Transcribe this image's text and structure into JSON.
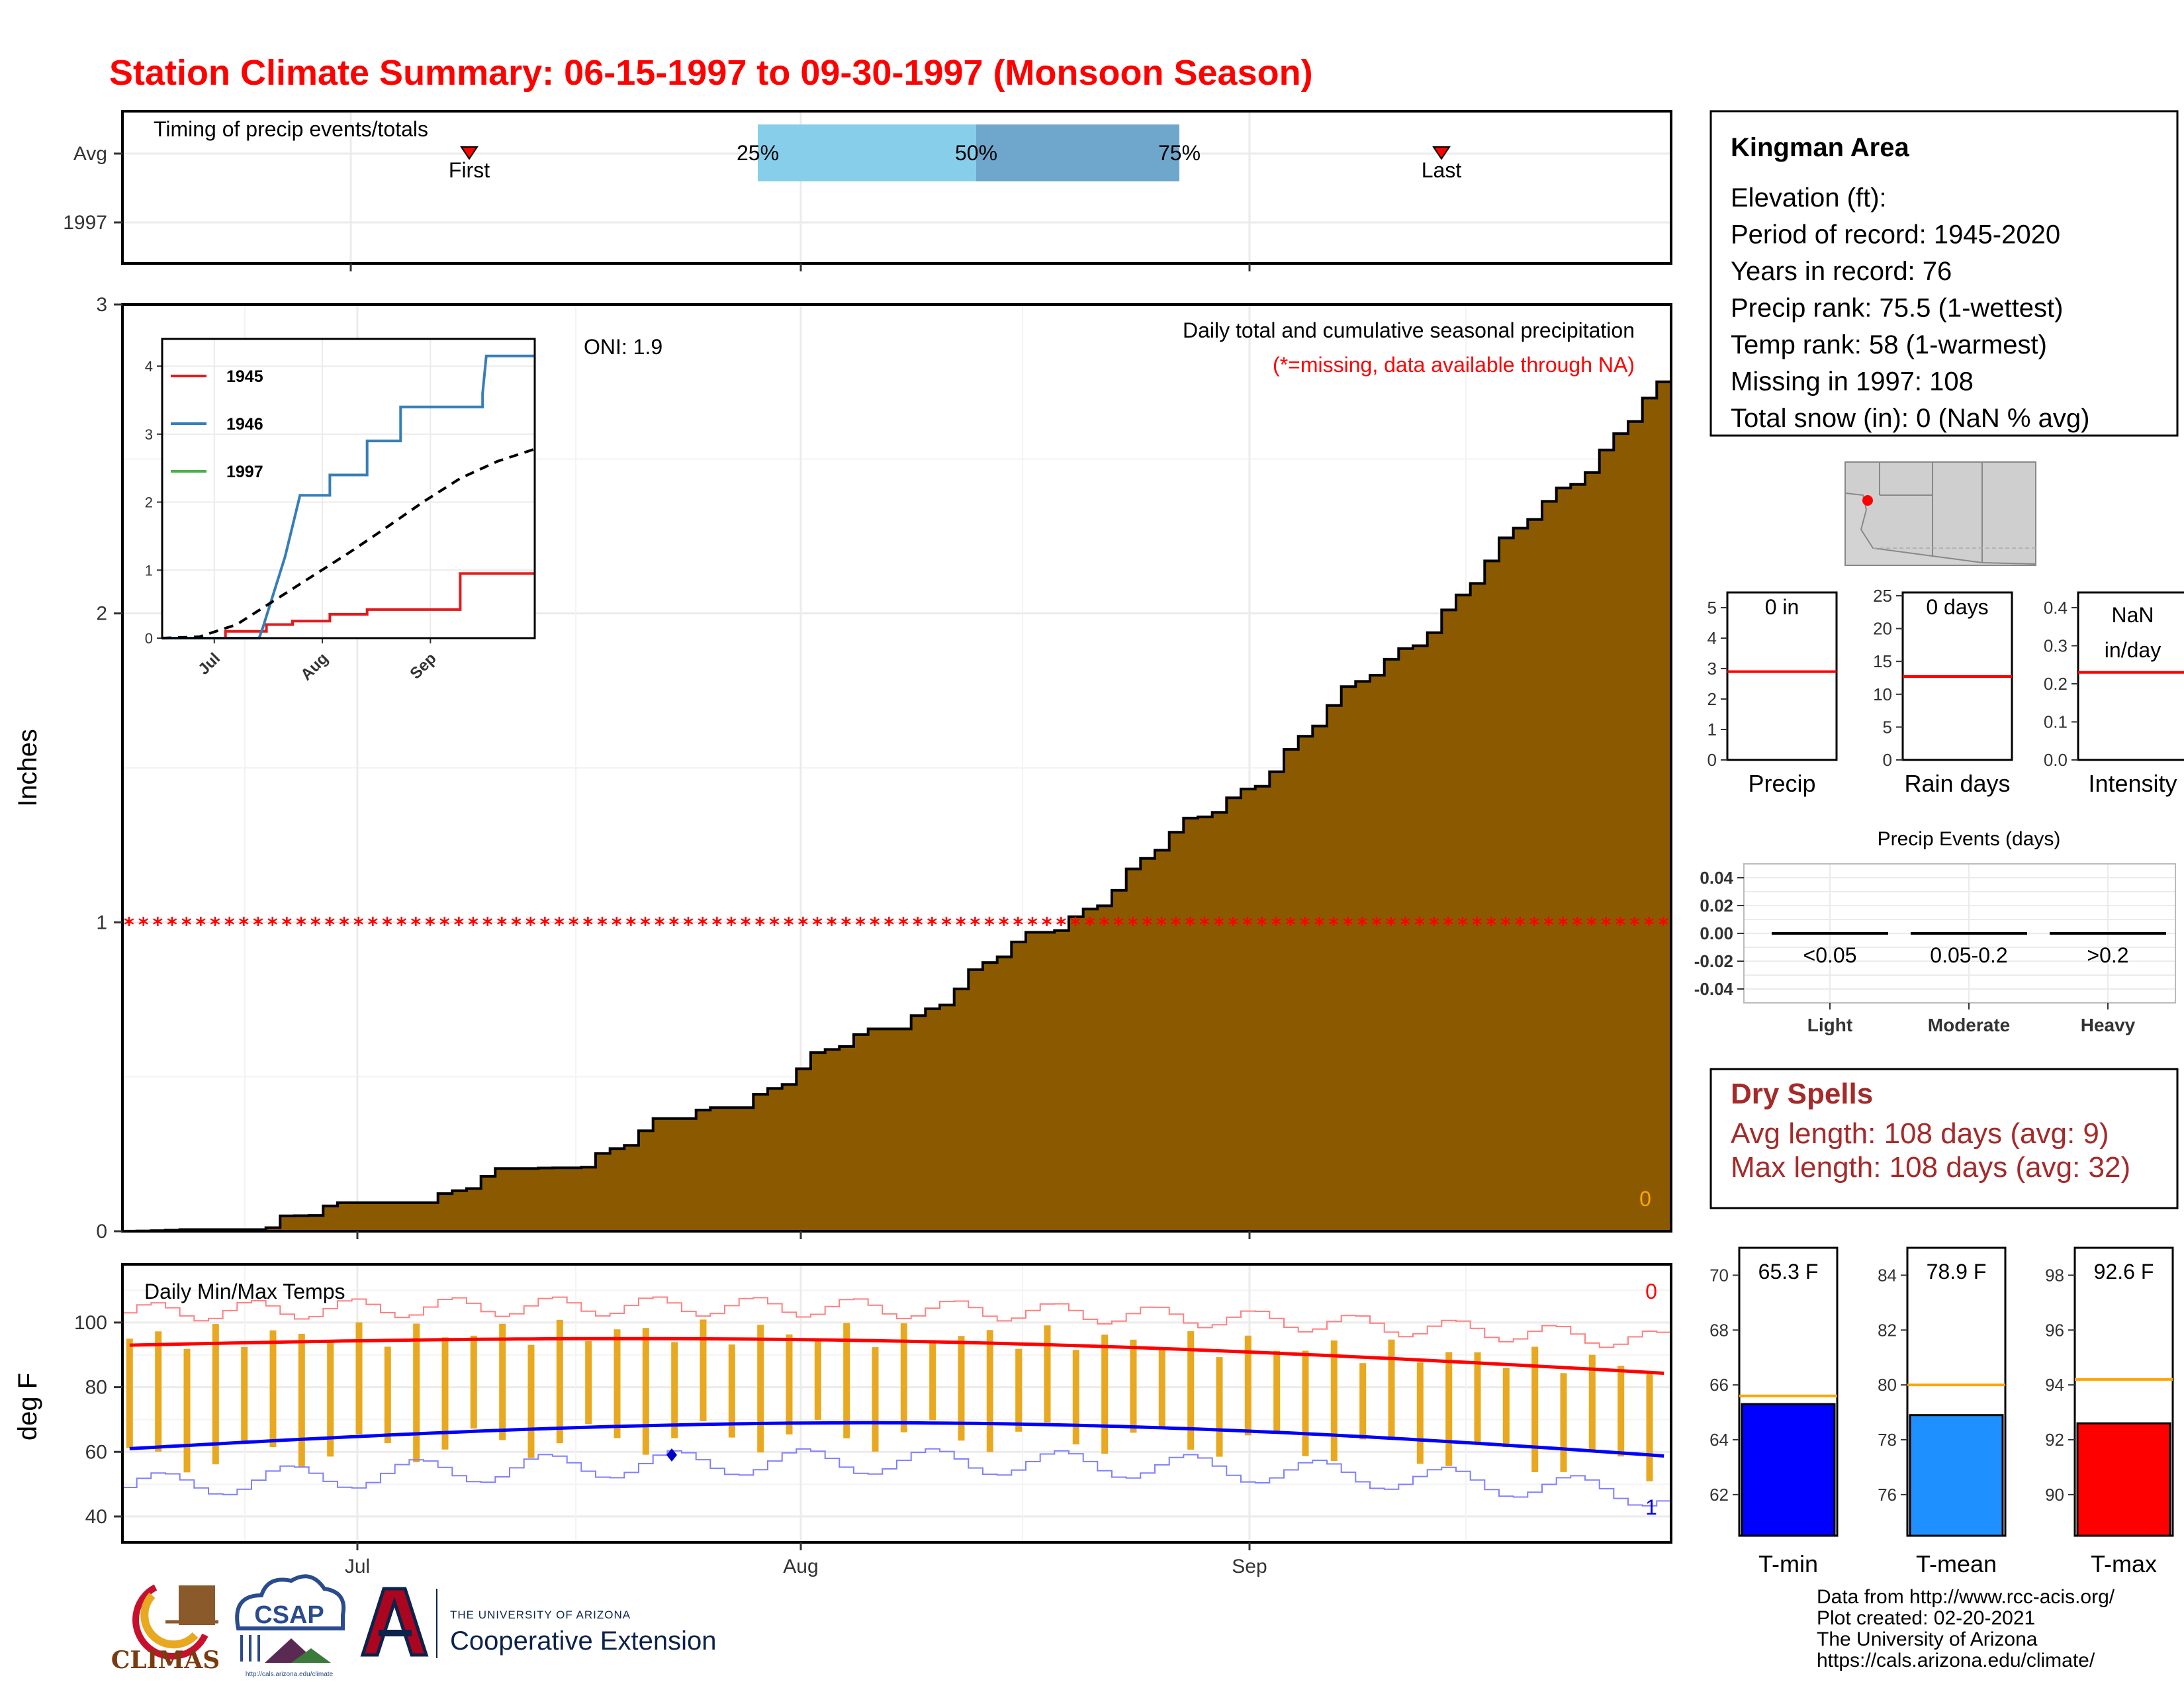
{
  "chart_data": {
    "title": "Station Climate Summary: 06-15-1997 to 09-30-1997 (Monsoon Season)",
    "timing_panel": {
      "type": "range",
      "label": "Timing of precip events/totals",
      "rows": [
        "Avg",
        "1997"
      ],
      "markers": [
        "First",
        "Last"
      ],
      "quantiles": [
        "25%",
        "50%",
        "75%"
      ]
    },
    "main_panel": {
      "type": "area",
      "ylabel": "Inches",
      "ylim": [
        0,
        3
      ],
      "yticks": [
        "0",
        "1",
        "2",
        "3"
      ],
      "xticks": [
        "Jul",
        "Aug",
        "Sep"
      ],
      "oni": "ONI: 1.9",
      "label_1": "Daily total and cumulative seasonal precipitation",
      "label_2": "(*=missing, data available through NA)",
      "corner_value": "0",
      "cumulative_total": 2.75,
      "missing_marker_level": 1.0,
      "colors": {
        "fill": "#8b5a00",
        "missing": "#ff0000",
        "corner": "#ffa500"
      }
    },
    "inset": {
      "type": "line",
      "yticks": [
        "0",
        "1",
        "2",
        "3",
        "4"
      ],
      "xticks": [
        "Jul",
        "Aug",
        "Sep"
      ],
      "series": [
        {
          "name": "1945",
          "color": "#e41a1c",
          "points": [
            [
              0,
              0
            ],
            [
              0.17,
              0
            ],
            [
              0.17,
              0.1
            ],
            [
              0.28,
              0.1
            ],
            [
              0.28,
              0.2
            ],
            [
              0.35,
              0.2
            ],
            [
              0.35,
              0.25
            ],
            [
              0.45,
              0.25
            ],
            [
              0.45,
              0.35
            ],
            [
              0.55,
              0.35
            ],
            [
              0.55,
              0.42
            ],
            [
              0.8,
              0.42
            ],
            [
              0.8,
              0.95
            ],
            [
              1,
              0.95
            ]
          ]
        },
        {
          "name": "1946",
          "color": "#377eb8",
          "points": [
            [
              0,
              0
            ],
            [
              0.26,
              0
            ],
            [
              0.27,
              0.15
            ],
            [
              0.33,
              1.2
            ],
            [
              0.37,
              2.1
            ],
            [
              0.45,
              2.1
            ],
            [
              0.45,
              2.4
            ],
            [
              0.55,
              2.4
            ],
            [
              0.55,
              2.9
            ],
            [
              0.64,
              2.9
            ],
            [
              0.64,
              3.4
            ],
            [
              0.86,
              3.4
            ],
            [
              0.86,
              3.6
            ],
            [
              0.87,
              4.15
            ],
            [
              1,
              4.15
            ]
          ]
        },
        {
          "name": "1997",
          "color": "#4daf4a",
          "points": []
        },
        {
          "name": "",
          "color": "#000000",
          "dashed": true,
          "points": [
            [
              0,
              0
            ],
            [
              0.1,
              0.02
            ],
            [
              0.2,
              0.2
            ],
            [
              0.3,
              0.55
            ],
            [
              0.4,
              0.9
            ],
            [
              0.5,
              1.25
            ],
            [
              0.6,
              1.62
            ],
            [
              0.7,
              2.0
            ],
            [
              0.8,
              2.35
            ],
            [
              0.9,
              2.6
            ],
            [
              1,
              2.78
            ]
          ]
        }
      ]
    },
    "temp_panel": {
      "type": "line",
      "ylabel": "deg F",
      "label": "Daily Min/Max Temps",
      "yticks": [
        "40",
        "60",
        "80",
        "100"
      ],
      "ylim": [
        32,
        118
      ],
      "xticks": [
        "Jul",
        "Aug",
        "Sep"
      ],
      "corner_high": "0",
      "corner_low": "1",
      "colors": {
        "bar": "#e8a820",
        "max": "#ff0000",
        "min": "#0000ff"
      }
    },
    "rank_boxes": [
      {
        "label": "Precip",
        "value": "0 in",
        "yticks": [
          "0",
          "1",
          "2",
          "3",
          "4",
          "5"
        ],
        "ymax": 5.5,
        "avg": 2.9
      },
      {
        "label": "Rain days",
        "value": "0 days",
        "yticks": [
          "0",
          "5",
          "10",
          "15",
          "20",
          "25"
        ],
        "ymax": 25.5,
        "avg": 12.7
      },
      {
        "label": "Intensity",
        "value_1": "NaN",
        "value_2": "in/day",
        "yticks": [
          "0.0",
          "0.1",
          "0.2",
          "0.3",
          "0.4"
        ],
        "ymax": 0.44,
        "avg": 0.23
      }
    ],
    "precip_events": {
      "type": "bar",
      "title": "Precip Events (days)",
      "yticks": [
        "0.04",
        "0.02",
        "0.00",
        "-0.02",
        "-0.04"
      ],
      "categories": [
        "Light",
        "Moderate",
        "Heavy"
      ],
      "ranges": [
        "<0.05",
        "0.05-0.2",
        ">0.2"
      ],
      "values": [
        0,
        0,
        0
      ]
    },
    "temp_boxes": [
      {
        "label": "T-min",
        "value": "65.3 F",
        "yticks": [
          "62",
          "64",
          "66",
          "68",
          "70"
        ],
        "ylim": [
          60.5,
          71
        ],
        "bar": 65.3,
        "avg": 65.6,
        "color": "#0000ff"
      },
      {
        "label": "T-mean",
        "value": "78.9 F",
        "yticks": [
          "76",
          "78",
          "80",
          "82",
          "84"
        ],
        "ylim": [
          74.5,
          85
        ],
        "bar": 78.9,
        "avg": 80.0,
        "color": "#1e90ff"
      },
      {
        "label": "T-max",
        "value": "92.6 F",
        "yticks": [
          "90",
          "92",
          "94",
          "96",
          "98"
        ],
        "ylim": [
          88.5,
          99
        ],
        "bar": 92.6,
        "avg": 94.2,
        "color": "#ff0000"
      }
    ]
  },
  "station": {
    "name": "Kingman Area",
    "lines": [
      "Elevation (ft):",
      "Period of record: 1945-2020",
      "Years in record: 76",
      "Precip rank: 75.5 (1-wettest)",
      "Temp rank: 58 (1-warmest)",
      "Missing in 1997: 108",
      "Total snow (in): 0 (NaN % avg)"
    ]
  },
  "dry_spells": {
    "title": "Dry Spells",
    "avg": "Avg length: 108 days (avg: 9)",
    "max": "Max length: 108 days (avg: 32)"
  },
  "footer": {
    "lines": [
      "Data from http://www.rcc-acis.org/",
      "Plot created: 02-20-2021",
      "The University of Arizona",
      "https://cals.arizona.edu/climate/"
    ],
    "logos": {
      "climas": "CLIMAS",
      "csap": "CSAP",
      "csap_url": "http://cals.arizona.edu/climate",
      "ua_mark": "A",
      "ua_line1": "THE UNIVERSITY OF ARIZONA",
      "ua_line2": "Cooperative Extension"
    }
  }
}
